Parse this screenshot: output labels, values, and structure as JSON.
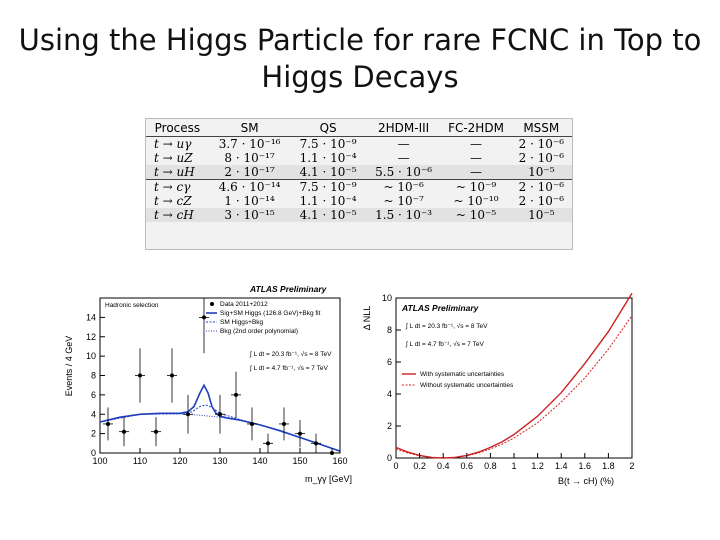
{
  "title": {
    "line1": "Using the Higgs Particle for rare FCNC in Top to",
    "line2": "Higgs Decays"
  },
  "table": {
    "headers": [
      "Process",
      "SM",
      "QS",
      "2HDM-III",
      "FC-2HDM",
      "MSSM"
    ],
    "rows": [
      [
        "t → uγ",
        "3.7 · 10⁻¹⁶",
        "7.5 · 10⁻⁹",
        "—",
        "—",
        "2 · 10⁻⁶"
      ],
      [
        "t → uZ",
        "8 · 10⁻¹⁷",
        "1.1 · 10⁻⁴",
        "—",
        "—",
        "2 · 10⁻⁶"
      ],
      [
        "t → uH",
        "2 · 10⁻¹⁷",
        "4.1 · 10⁻⁵",
        "5.5 · 10⁻⁶",
        "—",
        "10⁻⁵"
      ],
      [
        "t → cγ",
        "4.6 · 10⁻¹⁴",
        "7.5 · 10⁻⁹",
        "~ 10⁻⁶",
        "~ 10⁻⁹",
        "2 · 10⁻⁶"
      ],
      [
        "t → cZ",
        "1 · 10⁻¹⁴",
        "1.1 · 10⁻⁴",
        "~ 10⁻⁷",
        "~ 10⁻¹⁰",
        "2 · 10⁻⁶"
      ],
      [
        "t → cH",
        "3 · 10⁻¹⁵",
        "4.1 · 10⁻⁵",
        "1.5 · 10⁻³",
        "~ 10⁻⁵",
        "10⁻⁵"
      ]
    ]
  },
  "chart_data": [
    {
      "type": "line",
      "title": "ATLAS Preliminary",
      "xlabel": "m_γγ [GeV]",
      "ylabel": "Events / 4 GeV",
      "xlim": [
        100,
        160
      ],
      "ylim": [
        0,
        16
      ],
      "xticks": [
        100,
        110,
        120,
        130,
        140,
        150,
        160
      ],
      "yticks": [
        0,
        2,
        4,
        6,
        8,
        10,
        12,
        14
      ],
      "annotation": "Hadronic selection",
      "legend": {
        "data": "Data 2011+2012",
        "sig": "Sig+SM Higgs (126.8 GeV)+Bkg fit",
        "sm": "SM Higgs+Bkg",
        "bkg": "Bkg (2nd order polynomial)"
      },
      "lumi_lines": [
        "∫ L dt = 20.3 fb⁻¹, √s = 8 TeV",
        "∫ L dt = 4.7 fb⁻¹, √s = 7 TeV"
      ],
      "data_points": {
        "x": [
          102,
          106,
          110,
          114,
          118,
          122,
          126,
          130,
          134,
          138,
          142,
          146,
          150,
          154,
          158
        ],
        "y": [
          3,
          2.2,
          8,
          2.2,
          8,
          4,
          14,
          4,
          6,
          3,
          1,
          3,
          2,
          1,
          0
        ],
        "err": [
          1.7,
          1.5,
          2.8,
          1.5,
          2.8,
          2.0,
          3.7,
          2.0,
          2.4,
          1.7,
          1.0,
          1.7,
          1.4,
          1.0,
          0.5
        ]
      },
      "series": [
        {
          "name": "Sig+SM Higgs (126.8 GeV)+Bkg fit",
          "x": [
            100,
            105,
            110,
            115,
            118,
            120,
            122,
            123.5,
            125,
            126,
            127,
            128,
            129,
            130,
            132,
            135,
            140,
            145,
            150,
            155,
            160
          ],
          "y": [
            3.2,
            3.7,
            4.0,
            4.1,
            4.1,
            4.1,
            4.25,
            4.8,
            6.2,
            7.0,
            6.2,
            4.8,
            4.1,
            3.8,
            3.6,
            3.4,
            2.9,
            2.3,
            1.6,
            0.9,
            0.2
          ]
        },
        {
          "name": "SM Higgs+Bkg",
          "x": [
            100,
            110,
            120,
            123,
            125,
            126.5,
            128,
            130,
            135,
            140,
            150,
            160
          ],
          "y": [
            3.2,
            4.0,
            4.05,
            4.25,
            4.8,
            4.95,
            4.7,
            4.1,
            3.45,
            2.9,
            1.6,
            0.2
          ]
        },
        {
          "name": "Bkg (2nd order polynomial)",
          "x": [
            100,
            105,
            110,
            115,
            120,
            125,
            130,
            135,
            140,
            145,
            150,
            155,
            160
          ],
          "y": [
            3.2,
            3.7,
            4.0,
            4.1,
            4.05,
            3.9,
            3.7,
            3.35,
            2.9,
            2.3,
            1.6,
            0.9,
            0.2
          ]
        }
      ]
    },
    {
      "type": "line",
      "title": "ATLAS Preliminary",
      "xlabel": "B(t → cH) (%)",
      "ylabel": "Δ NLL",
      "xlim": [
        0,
        2
      ],
      "ylim": [
        0,
        10
      ],
      "xticks": [
        0,
        0.2,
        0.4,
        0.6,
        0.8,
        1,
        1.2,
        1.4,
        1.6,
        1.8,
        2
      ],
      "yticks": [
        0,
        2,
        4,
        6,
        8,
        10
      ],
      "lumi_lines": [
        "∫ L dt = 20.3 fb⁻¹, √s = 8 TeV",
        "∫ L dt = 4.7 fb⁻¹, √s = 7 TeV"
      ],
      "series": [
        {
          "name": "With systematic uncertainties",
          "x": [
            0,
            0.1,
            0.2,
            0.3,
            0.4,
            0.5,
            0.6,
            0.7,
            0.8,
            0.9,
            1.0,
            1.2,
            1.4,
            1.6,
            1.8,
            2.0
          ],
          "y": [
            0.66,
            0.37,
            0.16,
            0.04,
            0.0,
            0.04,
            0.16,
            0.37,
            0.66,
            1.02,
            1.47,
            2.61,
            4.08,
            5.9,
            7.9,
            10.3
          ]
        },
        {
          "name": "Without systematic uncertainties",
          "x": [
            0,
            0.1,
            0.2,
            0.3,
            0.4,
            0.5,
            0.6,
            0.7,
            0.8,
            0.9,
            1.0,
            1.2,
            1.4,
            1.6,
            1.8,
            2.0
          ],
          "y": [
            0.56,
            0.31,
            0.14,
            0.04,
            0.0,
            0.04,
            0.14,
            0.31,
            0.56,
            0.87,
            1.25,
            2.2,
            3.5,
            5.0,
            6.8,
            8.9
          ]
        }
      ]
    }
  ]
}
